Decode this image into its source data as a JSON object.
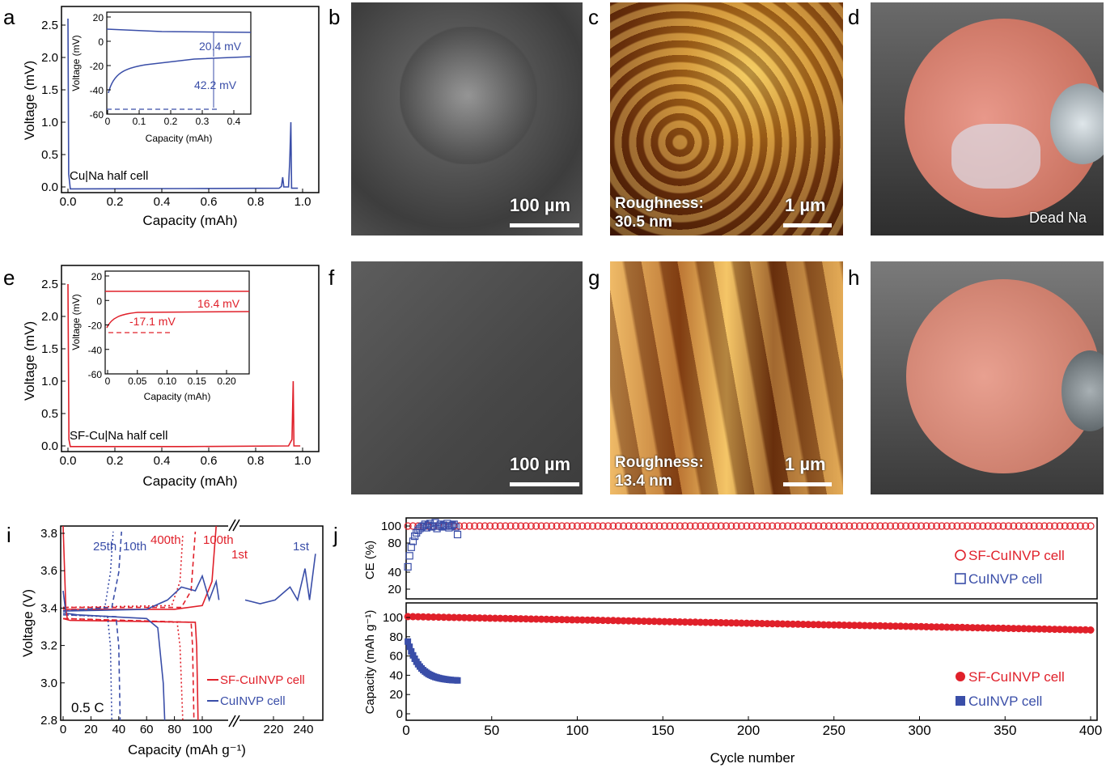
{
  "panel_labels": {
    "a": "a",
    "b": "b",
    "c": "c",
    "d": "d",
    "e": "e",
    "f": "f",
    "g": "g",
    "h": "h",
    "i": "i",
    "j": "j"
  },
  "images": {
    "b": {
      "scale": "100 µm"
    },
    "c": {
      "scale": "1 µm",
      "roughness_label": "Roughness:",
      "roughness_value": "30.5 nm"
    },
    "d": {
      "annotation": "Dead Na"
    },
    "f": {
      "scale": "100 µm"
    },
    "g": {
      "scale": "1 µm",
      "roughness_label": "Roughness:",
      "roughness_value": "13.4 nm"
    }
  },
  "colors": {
    "blue": "#3a4ea8",
    "red": "#e0202a"
  },
  "chart_data": [
    {
      "id": "a",
      "type": "line",
      "xlabel": "Capacity (mAh)",
      "ylabel": "Voltage (mV)",
      "xlim": [
        0,
        1.0
      ],
      "ylim": [
        -0.1,
        2.6
      ],
      "xticks": [
        "0.0",
        "0.2",
        "0.4",
        "0.6",
        "0.8",
        "1.0"
      ],
      "yticks": [
        "0.0",
        "0.5",
        "1.0",
        "1.5",
        "2.0",
        "2.5"
      ],
      "annotation": "Cu|Na half cell",
      "inset": {
        "xlabel": "Capacity (mAh)",
        "ylabel": "Voltage (mV)",
        "xticks": [
          "0",
          "0.1",
          "0.2",
          "0.3",
          "0.4"
        ],
        "yticks": [
          "-60",
          "-40",
          "-20",
          "0",
          "20"
        ],
        "labels": [
          "20.4 mV",
          "42.2 mV"
        ]
      }
    },
    {
      "id": "e",
      "type": "line",
      "xlabel": "Capacity (mAh)",
      "ylabel": "Voltage (mV)",
      "xlim": [
        0,
        1.0
      ],
      "ylim": [
        -0.1,
        2.6
      ],
      "xticks": [
        "0.0",
        "0.2",
        "0.4",
        "0.6",
        "0.8",
        "1.0"
      ],
      "yticks": [
        "0.0",
        "0.5",
        "1.0",
        "1.5",
        "2.0",
        "2.5"
      ],
      "annotation": "SF-Cu|Na half cell",
      "inset": {
        "xlabel": "Capacity (mAh)",
        "ylabel": "Voltage (mV)",
        "xticks": [
          "0",
          "0.05",
          "0.10",
          "0.15",
          "0.20"
        ],
        "yticks": [
          "-60",
          "-40",
          "-20",
          "0",
          "20"
        ],
        "labels": [
          "16.4 mV",
          "-17.1 mV"
        ]
      }
    },
    {
      "id": "i",
      "type": "line",
      "xlabel": "Capacity (mAh g⁻¹)",
      "ylabel": "Voltage (V)",
      "ylim": [
        2.8,
        3.85
      ],
      "xticks": [
        "0",
        "20",
        "40",
        "60",
        "80",
        "100",
        "220",
        "240"
      ],
      "yticks": [
        "2.8",
        "3.0",
        "3.2",
        "3.4",
        "3.6",
        "3.8"
      ],
      "annotation": "0.5 C",
      "cycle_labels_blue": [
        "25th",
        "10th",
        "1st"
      ],
      "cycle_labels_red": [
        "400th",
        "100th",
        "1st"
      ],
      "legend": [
        "SF-CuINVP cell",
        "CuINVP cell"
      ]
    },
    {
      "id": "j",
      "type": "scatter",
      "xlabel": "Cycle number",
      "xlim": [
        0,
        400
      ],
      "xticks": [
        "0",
        "50",
        "100",
        "150",
        "200",
        "250",
        "300",
        "350",
        "400"
      ],
      "top": {
        "ylabel": "CE (%)",
        "yticks": [
          "20",
          "40",
          "80",
          "100"
        ],
        "legend": [
          "SF-CuINVP cell",
          "CuINVP cell"
        ]
      },
      "bottom": {
        "ylabel": "Capacity (mAh g⁻¹)",
        "ylim": [
          0,
          120
        ],
        "yticks": [
          "0",
          "20",
          "40",
          "60",
          "80",
          "100"
        ],
        "legend": [
          "SF-CuINVP cell",
          "CuINVP cell"
        ]
      },
      "series": [
        {
          "name": "SF-CuINVP cell",
          "ce_start": 100,
          "capacity_start": 101,
          "capacity_end": 87
        },
        {
          "name": "CuINVP cell",
          "cycles_end": 30,
          "capacity_start": 75,
          "capacity_end": 34
        }
      ]
    }
  ]
}
